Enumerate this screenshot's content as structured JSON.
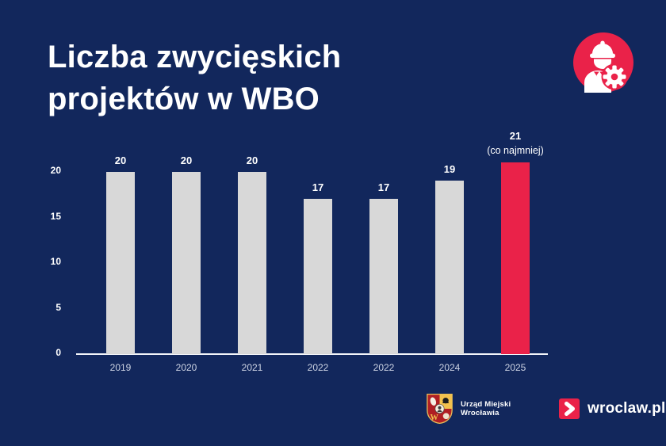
{
  "title": {
    "line1": "Liczba zwycięskich",
    "line2": "projektów w WBO"
  },
  "chart_data": {
    "type": "bar",
    "title": "Liczba zwycięskich projektów w WBO",
    "categories": [
      "2019",
      "2020",
      "2021",
      "2022",
      "2022",
      "2024",
      "2025"
    ],
    "values": [
      20,
      20,
      20,
      17,
      17,
      19,
      21
    ],
    "value_labels": [
      "20",
      "20",
      "20",
      "17",
      "17",
      "19",
      "21"
    ],
    "highlight_index": 6,
    "highlight_annotation": "(co najmniej)",
    "xlabel": "",
    "ylabel": "",
    "yticks": [
      0,
      5,
      10,
      15,
      20
    ],
    "ylim": [
      0,
      21.5
    ],
    "grid": false,
    "legend_position": "none",
    "bar_color": "#d8d8d8",
    "highlight_color": "#ea2249"
  },
  "footer": {
    "office_line1": "Urząd Miejski",
    "office_line2": "Wrocławia",
    "brand_text": "wroclaw.pl"
  },
  "icons": {
    "badge": "construction-worker-with-gear-icon",
    "crest": "wroclaw-coat-of-arms-icon",
    "chevron": "chevron-right-icon"
  },
  "colors": {
    "background": "#12275c",
    "title_text": "#ffffff",
    "axis_text": "#ffffff",
    "year_text": "#ccd3e3",
    "axis_line": "#f2f4f9",
    "accent_red": "#ea2249",
    "bar_gray": "#d8d8d8"
  }
}
